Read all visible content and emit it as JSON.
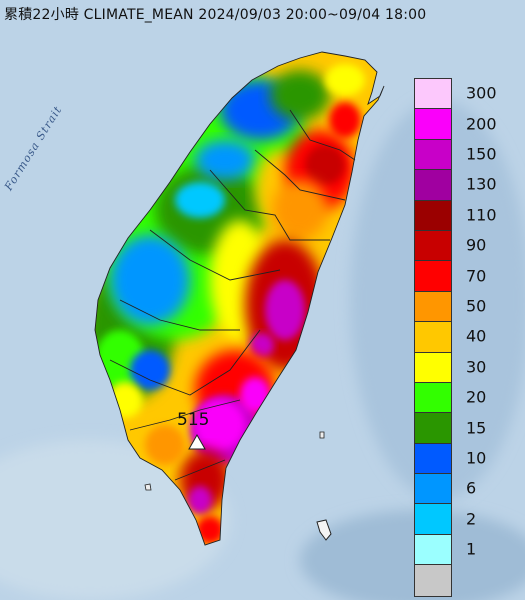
{
  "title": "累積22小時 CLIMATE_MEAN 2024/09/03 20:00~09/04 18:00",
  "strait_label": "Formosa Strait",
  "max_station_value": "515",
  "legend": [
    {
      "label": "300",
      "color": "#fcc8fc"
    },
    {
      "label": "200",
      "color": "#fa00fa"
    },
    {
      "label": "150",
      "color": "#c800c8"
    },
    {
      "label": "130",
      "color": "#a000a0"
    },
    {
      "label": "110",
      "color": "#9b0000"
    },
    {
      "label": "90",
      "color": "#c80000"
    },
    {
      "label": "70",
      "color": "#ff0000"
    },
    {
      "label": "50",
      "color": "#ff9600"
    },
    {
      "label": "40",
      "color": "#ffc800"
    },
    {
      "label": "30",
      "color": "#ffff00"
    },
    {
      "label": "20",
      "color": "#32ff00"
    },
    {
      "label": "15",
      "color": "#2a9600"
    },
    {
      "label": "10",
      "color": "#005aff"
    },
    {
      "label": "6",
      "color": "#0096ff"
    },
    {
      "label": "2",
      "color": "#00c8ff"
    },
    {
      "label": "1",
      "color": "#9bffff"
    },
    {
      "label": "",
      "color": "#c8c8c8"
    }
  ]
}
